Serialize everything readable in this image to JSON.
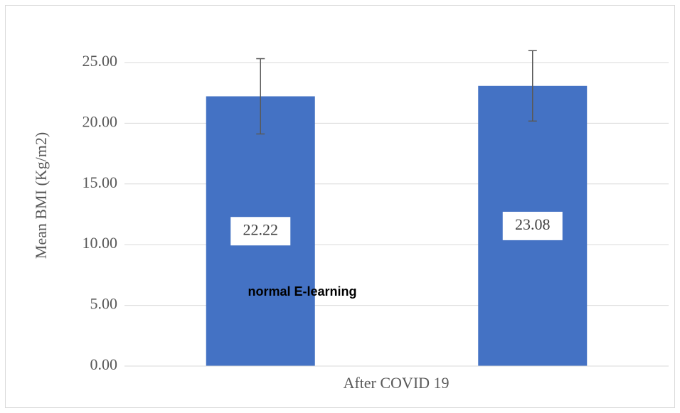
{
  "chart_data": {
    "type": "bar",
    "y_label": "Mean BMI (Kg/m2)",
    "x_label": "After COVID 19",
    "annotation": "normal E-learning",
    "values": [
      22.22,
      23.08
    ],
    "errors": [
      3.1,
      2.9
    ],
    "color": "#4472c4",
    "ylim": [
      0,
      25
    ],
    "yticks": [
      {
        "value": 0,
        "label": "0.00"
      },
      {
        "value": 5,
        "label": "5.00"
      },
      {
        "value": 10,
        "label": "10.00"
      },
      {
        "value": 15,
        "label": "15.00"
      },
      {
        "value": 20,
        "label": "20.00"
      },
      {
        "value": 25,
        "label": "25.00"
      }
    ],
    "grid": true
  }
}
